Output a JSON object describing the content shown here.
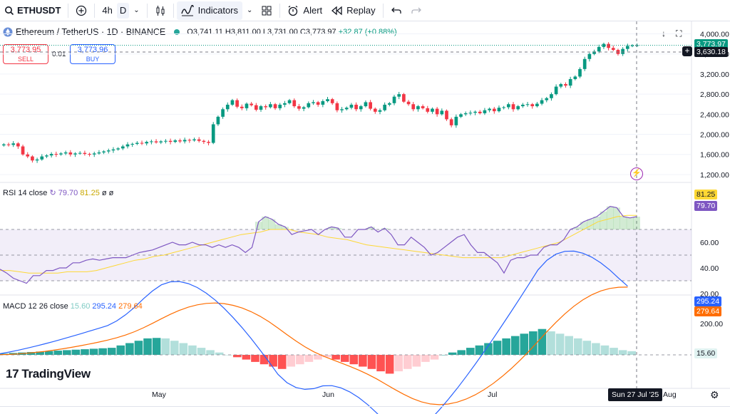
{
  "toolbar": {
    "symbol": "ETHUSDT",
    "interval": "4h",
    "interval_selected": "D",
    "indicators_label": "Indicators",
    "alert_label": "Alert",
    "replay_label": "Replay"
  },
  "legend": {
    "title": "Ethereum / TetherUS · 1D · BINANCE",
    "open": "O3,741.11",
    "high": "H3,811.00",
    "low": "L3,731.00",
    "close": "C3,773.97",
    "change": "+32.87 (+0.88%)"
  },
  "trade": {
    "sell_price": "3,773.95",
    "sell_label": "SELL",
    "spread": "0.01",
    "buy_price": "3,773.96",
    "buy_label": "BUY"
  },
  "price_axis": {
    "ticks": [
      "4,000.00",
      "3,600.00",
      "3,200.00",
      "2,800.00",
      "2,400.00",
      "2,000.00",
      "1,600.00",
      "1,200.00"
    ],
    "last_price": "3,773.97",
    "crosshair_price": "3,630.18"
  },
  "rsi": {
    "label": "RSI 14 close",
    "value": "79.70",
    "ma_value": "81.25",
    "extra": "ø ø",
    "ticks": [
      "60.00",
      "40.00",
      "20.00"
    ]
  },
  "macd": {
    "label": "MACD 12 26 close",
    "hist": "15.60",
    "macd": "295.24",
    "signal": "279.64",
    "ticks": [
      "200.00"
    ]
  },
  "time_axis": {
    "labels": [
      "May",
      "Jun",
      "Jul",
      "Aug"
    ],
    "cursor": "Sun 27 Jul '25"
  },
  "brand": {
    "logo_text": "TradingView"
  },
  "colors": {
    "up": "#089981",
    "down": "#f23645",
    "rsi_line": "#7e57c2",
    "rsi_ma": "#fdd835",
    "macd_line": "#2962ff",
    "signal_line": "#ff6d00"
  },
  "chart_data": [
    {
      "type": "candlestick",
      "title": "Ethereum / TetherUS · 1D · BINANCE",
      "ylim": [
        1100,
        4050
      ],
      "close_series": [
        1800,
        1790,
        1820,
        1760,
        1600,
        1560,
        1480,
        1500,
        1560,
        1580,
        1610,
        1600,
        1620,
        1640,
        1600,
        1620,
        1630,
        1610,
        1600,
        1620,
        1640,
        1660,
        1680,
        1700,
        1720,
        1760,
        1800,
        1810,
        1830,
        1820,
        1850,
        1860,
        1840,
        1860,
        1870,
        1850,
        1880,
        1860,
        1890,
        1880,
        1900,
        1870,
        1850,
        1830,
        2200,
        2350,
        2500,
        2590,
        2680,
        2550,
        2520,
        2610,
        2580,
        2490,
        2560,
        2540,
        2600,
        2520,
        2590,
        2620,
        2680,
        2560,
        2510,
        2540,
        2620,
        2640,
        2590,
        2660,
        2700,
        2620,
        2480,
        2500,
        2530,
        2590,
        2500,
        2560,
        2640,
        2510,
        2450,
        2480,
        2590,
        2620,
        2750,
        2800,
        2650,
        2600,
        2500,
        2560,
        2520,
        2450,
        2510,
        2400,
        2470,
        2300,
        2180,
        2350,
        2400,
        2420,
        2430,
        2450,
        2420,
        2480,
        2510,
        2460,
        2530,
        2540,
        2600,
        2500,
        2560,
        2590,
        2600,
        2560,
        2610,
        2680,
        2720,
        2800,
        2950,
        3000,
        2970,
        3100,
        3150,
        3300,
        3500,
        3600,
        3650,
        3740,
        3800,
        3720,
        3680,
        3600,
        3700,
        3760,
        3770,
        3774
      ]
    },
    {
      "type": "line",
      "title": "RSI 14 close",
      "ylim": [
        20,
        100
      ],
      "series": [
        {
          "name": "RSI",
          "values": [
            39,
            36,
            32,
            30,
            28,
            34,
            34,
            38,
            38,
            40,
            40,
            44,
            44,
            46,
            47,
            46,
            47,
            48,
            48,
            48,
            50,
            52,
            53,
            54,
            56,
            58,
            60,
            58,
            58,
            60,
            58,
            58,
            56,
            58,
            56,
            58,
            56,
            52,
            56,
            76,
            80,
            78,
            74,
            72,
            66,
            68,
            69,
            70,
            66,
            70,
            72,
            71,
            64,
            64,
            70,
            70,
            72,
            68,
            71,
            66,
            58,
            58,
            64,
            60,
            56,
            50,
            52,
            56,
            60,
            64,
            66,
            58,
            52,
            52,
            48,
            44,
            36,
            46,
            48,
            48,
            50,
            50,
            56,
            58,
            58,
            62,
            70,
            72,
            76,
            78,
            80,
            84,
            88,
            87,
            80,
            79,
            80
          ]
        },
        {
          "name": "RSI MA",
          "values": [
            38,
            38,
            37,
            36,
            36,
            36,
            36,
            37,
            37,
            37,
            38,
            40,
            42,
            44,
            46,
            47,
            49,
            50,
            52,
            54,
            56,
            58,
            60,
            62,
            64,
            66,
            67,
            68,
            70,
            70,
            70,
            68,
            67,
            66,
            64,
            63,
            62,
            60,
            58,
            57,
            56,
            55,
            54,
            53,
            52,
            51,
            50,
            49,
            48,
            48,
            48,
            48,
            48,
            50,
            52,
            54,
            56,
            58,
            60,
            64,
            68,
            72,
            76,
            78,
            80,
            81,
            81
          ]
        }
      ]
    },
    {
      "type": "bar",
      "title": "MACD 12 26 close",
      "series": [
        {
          "name": "Histogram",
          "values": [
            5,
            8,
            10,
            12,
            14,
            16,
            18,
            20,
            22,
            24,
            26,
            28,
            30,
            40,
            50,
            60,
            70,
            72,
            70,
            60,
            50,
            40,
            30,
            20,
            10,
            0,
            -10,
            -20,
            -30,
            -40,
            -50,
            -60,
            -50,
            -40,
            -30,
            -20,
            -10,
            -20,
            -30,
            -40,
            -50,
            -60,
            -70,
            -80,
            -70,
            -60,
            -50,
            -30,
            -20,
            0,
            10,
            20,
            30,
            40,
            50,
            60,
            70,
            80,
            90,
            100,
            110,
            100,
            90,
            80,
            70,
            60,
            50,
            40,
            30,
            20,
            15.6
          ]
        }
      ]
    }
  ]
}
